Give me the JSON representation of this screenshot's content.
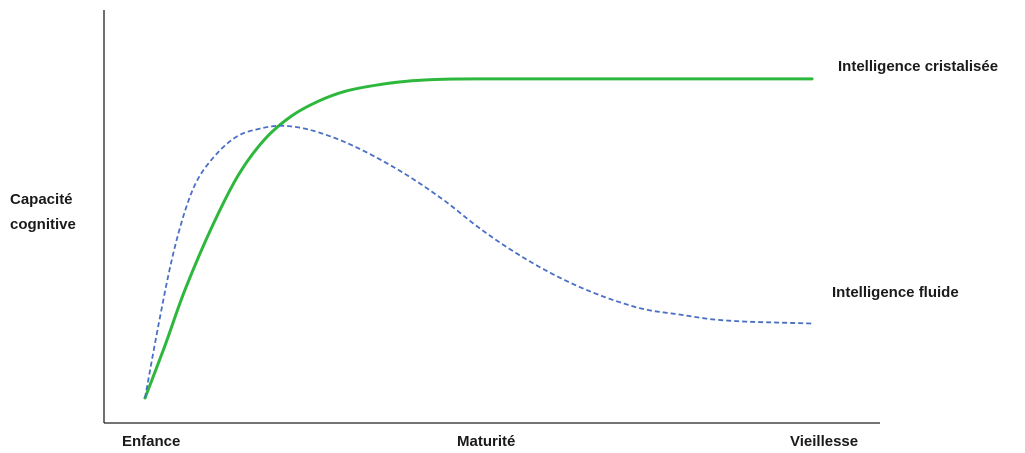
{
  "chart_data": {
    "type": "line",
    "title": "",
    "ylabel_lines": [
      "Capacité",
      "cognitive"
    ],
    "categories": [
      "Enfance",
      "Maturité",
      "Vieillesse"
    ],
    "xlim": [
      0,
      100
    ],
    "ylim": [
      0,
      100
    ],
    "grid": false,
    "legend": "inline-right",
    "series": [
      {
        "name": "Intelligence cristalisée",
        "style": "solid",
        "color": "#2db83d",
        "x": [
          0,
          3,
          6,
          10,
          14,
          18,
          22,
          26,
          30,
          35,
          40,
          45,
          50,
          60,
          70,
          80,
          90,
          100
        ],
        "y": [
          0,
          16,
          33,
          52,
          68,
          79,
          86,
          90.5,
          93.5,
          95.5,
          96.7,
          97.2,
          97.3,
          97.3,
          97.3,
          97.3,
          97.3,
          97.3
        ]
      },
      {
        "name": "Intelligence fluide",
        "style": "dashed",
        "color": "#4a6fc4",
        "x": [
          0,
          2,
          4,
          6,
          8,
          11,
          14,
          17,
          20,
          23,
          26,
          30,
          35,
          40,
          45,
          50,
          55,
          60,
          65,
          70,
          75,
          80,
          85,
          90,
          95,
          100
        ],
        "y": [
          0,
          22,
          42,
          57,
          67,
          75,
          80,
          82,
          83,
          82.5,
          81,
          78,
          73,
          67,
          60,
          52,
          45,
          39,
          34,
          30,
          27,
          25.5,
          24,
          23.3,
          23,
          22.7
        ]
      }
    ]
  }
}
